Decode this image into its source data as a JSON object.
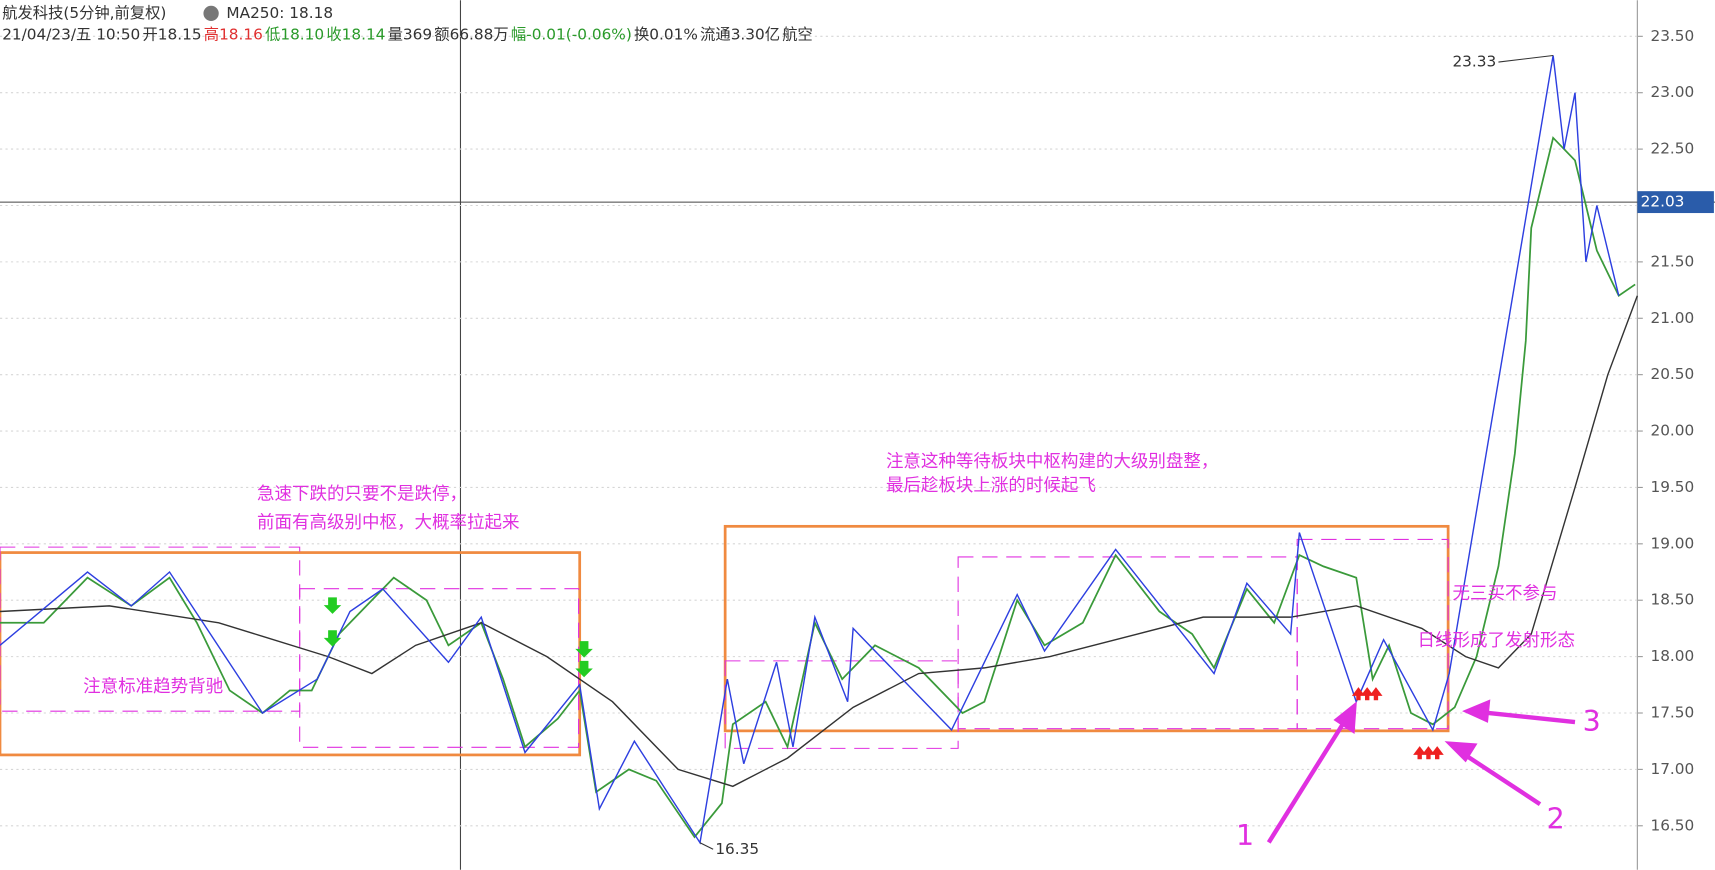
{
  "chart_data": {
    "type": "line",
    "title": "航发科技(5分钟,前复权)",
    "indicator": "MA250: 18.18",
    "info": [
      {
        "text": "21/04/23/五 10:50",
        "color": "#333333"
      },
      {
        "text": "开18.15",
        "color": "#333333"
      },
      {
        "text": "高18.16",
        "color": "#e03030"
      },
      {
        "text": "低18.10",
        "color": "#2a9a2a"
      },
      {
        "text": "收18.14",
        "color": "#2a9a2a"
      },
      {
        "text": "量369",
        "color": "#333333"
      },
      {
        "text": "额66.88万",
        "color": "#333333"
      },
      {
        "text": "幅-0.01(-0.06%)",
        "color": "#2a9a2a"
      },
      {
        "text": "换0.01%",
        "color": "#333333"
      },
      {
        "text": "流通3.30亿",
        "color": "#333333"
      },
      {
        "text": "航空",
        "color": "#333333"
      }
    ],
    "xlim": [
      0,
      299.4
    ],
    "ylim": [
      16.11,
      23.82
    ],
    "yticks": [
      {
        "value": 16.5,
        "label": "16.50"
      },
      {
        "value": 17,
        "label": "17.00"
      },
      {
        "value": 17.5,
        "label": "17.50"
      },
      {
        "value": 18,
        "label": "18.00"
      },
      {
        "value": 18.5,
        "label": "18.50"
      },
      {
        "value": 19,
        "label": "19.00"
      },
      {
        "value": 19.5,
        "label": "19.50"
      },
      {
        "value": 20,
        "label": "20.00"
      },
      {
        "value": 20.5,
        "label": "20.50"
      },
      {
        "value": 21,
        "label": "21.00"
      },
      {
        "value": 21.5,
        "label": "21.50"
      },
      {
        "value": 22,
        "label": "22.00"
      },
      {
        "value": 22.5,
        "label": "22.50"
      },
      {
        "value": 23,
        "label": "23.00"
      },
      {
        "value": 23.5,
        "label": "23.50"
      }
    ],
    "grid": true,
    "crosshair_price": 22.03,
    "high_label": 23.33,
    "low_label": 16.35,
    "series": [
      {
        "color": "#3a9a3a",
        "x": [
          0,
          8,
          16,
          24,
          31,
          36,
          42,
          48,
          53,
          57,
          62,
          66,
          72,
          78,
          82,
          88,
          92,
          96,
          102,
          106,
          109,
          115,
          120,
          127,
          132,
          134,
          140,
          144,
          149,
          154,
          160,
          168,
          176,
          180,
          186,
          191,
          198,
          204,
          212,
          218,
          222,
          228,
          233,
          237.6,
          242,
          248,
          251,
          254,
          258,
          262,
          266,
          270,
          274,
          277,
          279,
          280,
          284,
          288,
          292,
          296,
          299
        ],
        "values": [
          18.3,
          18.3,
          18.7,
          18.45,
          18.7,
          18.3,
          17.7,
          17.5,
          17.7,
          17.7,
          18.2,
          18.4,
          18.7,
          18.5,
          18.1,
          18.3,
          17.8,
          17.2,
          17.45,
          17.7,
          16.8,
          17.0,
          16.9,
          16.4,
          16.7,
          17.4,
          17.6,
          17.2,
          18.3,
          17.8,
          18.1,
          17.9,
          17.5,
          17.6,
          18.5,
          18.1,
          18.3,
          18.9,
          18.4,
          18.2,
          17.9,
          18.6,
          18.3,
          18.9,
          18.8,
          18.7,
          17.8,
          18.1,
          17.5,
          17.4,
          17.55,
          18.0,
          18.8,
          19.8,
          20.8,
          21.8,
          22.6,
          22.4,
          21.6,
          21.2,
          21.3
        ]
      },
      {
        "name": "MA250",
        "color": "#333333",
        "x": [
          0,
          20,
          40,
          60,
          68,
          76,
          88,
          100,
          112,
          124,
          134,
          144,
          156,
          168,
          180,
          192,
          208,
          220,
          236,
          248,
          260,
          268,
          274,
          280,
          288,
          294,
          299.4
        ],
        "values": [
          18.4,
          18.45,
          18.3,
          18.0,
          17.85,
          18.1,
          18.3,
          18.0,
          17.6,
          17.0,
          16.85,
          17.1,
          17.55,
          17.85,
          17.9,
          18.0,
          18.2,
          18.35,
          18.35,
          18.45,
          18.25,
          18.0,
          17.9,
          18.2,
          19.5,
          20.5,
          21.2
        ]
      },
      {
        "color": "#2d3fe0",
        "x": [
          0,
          16,
          24,
          31,
          48,
          58,
          64,
          70,
          82,
          88,
          96,
          106,
          109.6,
          116,
          128,
          133,
          136,
          142,
          145,
          149,
          155,
          156,
          174,
          186,
          191,
          204,
          222,
          228,
          236,
          237.6,
          248,
          253,
          262,
          265,
          284,
          286,
          288,
          290,
          292,
          296
        ],
        "values": [
          18.1,
          18.75,
          18.45,
          18.75,
          17.5,
          17.8,
          18.4,
          18.6,
          17.95,
          18.35,
          17.15,
          17.75,
          16.65,
          17.25,
          16.35,
          17.8,
          17.05,
          17.95,
          17.2,
          18.35,
          17.6,
          18.25,
          17.35,
          18.55,
          18.05,
          18.95,
          17.85,
          18.65,
          18.2,
          19.1,
          17.6,
          18.15,
          17.35,
          17.85,
          23.33,
          22.5,
          23.0,
          21.5,
          22.0,
          21.2
        ]
      }
    ],
    "annotations": [
      "急速下跌的只要不是跌停，",
      "前面有高级别中枢，大概率拉起来",
      "注意标准趋势背驰",
      "注意这种等待板块中枢构建的大级别盘整，",
      "最后趁板块上涨的时候起飞",
      "无三买不参与",
      "日线形成了发射形态",
      "1",
      "2",
      "3"
    ]
  }
}
